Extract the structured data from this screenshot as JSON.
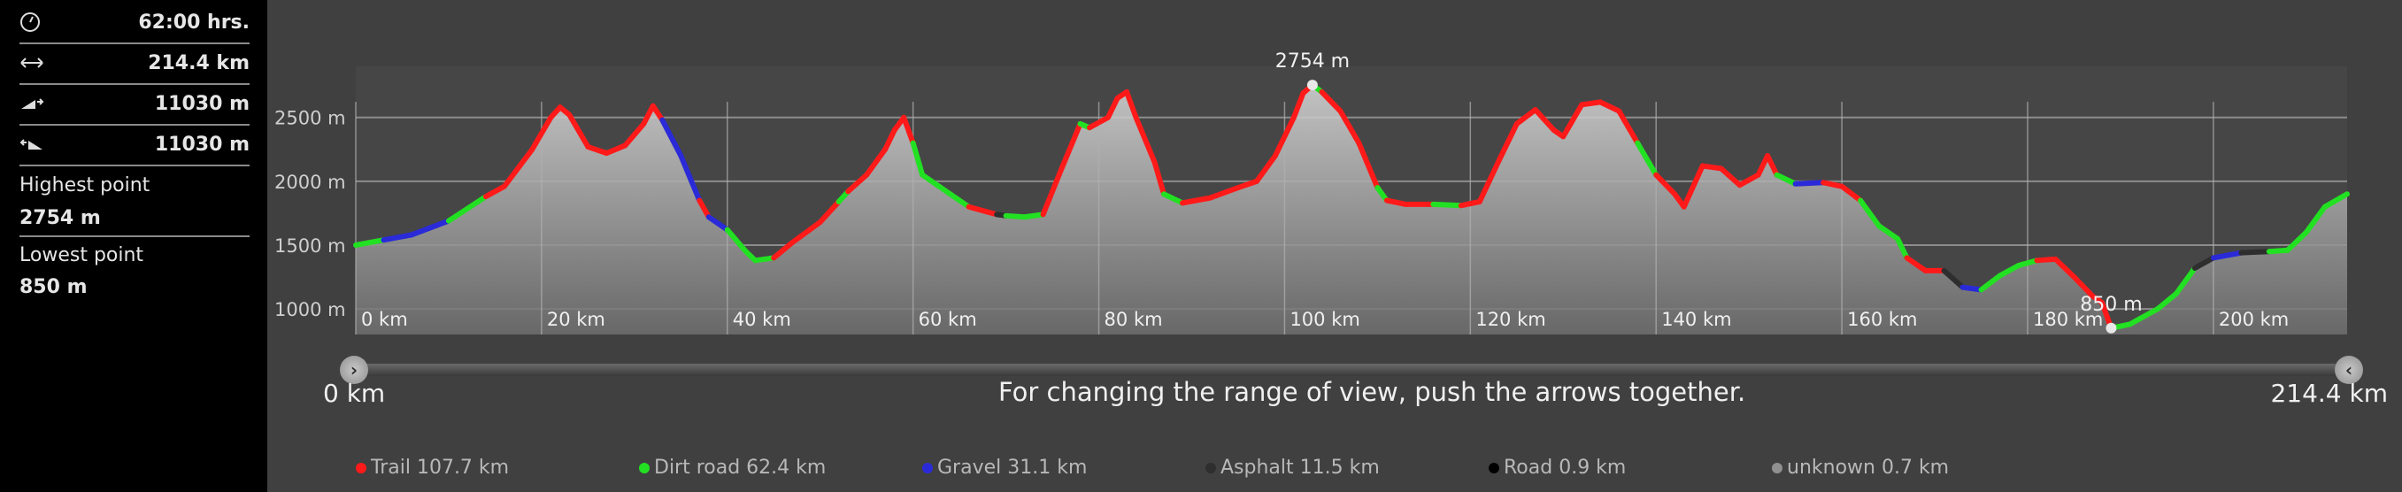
{
  "stats": {
    "duration": "62:00 hrs.",
    "distance": "214.4 km",
    "ascent": "11030 m",
    "descent": "11030 m",
    "highest_label": "Highest point",
    "highest_value": "2754 m",
    "lowest_label": "Lowest point",
    "lowest_value": "850 m"
  },
  "icons": {
    "duration": "clock-icon",
    "distance": "horizontal-arrows-icon",
    "ascent": "ascent-icon",
    "descent": "descent-icon"
  },
  "chart_data": {
    "type": "area",
    "xlim": [
      0,
      214.4
    ],
    "ylim": [
      800,
      2900
    ],
    "x_ticks": [
      0,
      20,
      40,
      60,
      80,
      100,
      120,
      140,
      160,
      180,
      200
    ],
    "x_tick_labels": [
      "0 km",
      "20 km",
      "40 km",
      "60 km",
      "80 km",
      "100 km",
      "120 km",
      "140 km",
      "160 km",
      "180 km",
      "200 km"
    ],
    "y_ticks": [
      1000,
      1500,
      2000,
      2500
    ],
    "y_tick_labels": [
      "1000 m",
      "1500 m",
      "2000 m",
      "2500 m"
    ],
    "grid": true,
    "surface_colors": {
      "trail": "#ff1a1a",
      "dirt": "#22e022",
      "gravel": "#2a2ad8",
      "asphalt": "#2e2e2e",
      "road": "#000000",
      "unknown": "#909090"
    },
    "profile": [
      {
        "x": 0,
        "y": 1500,
        "s": "asphalt"
      },
      {
        "x": 3,
        "y": 1540,
        "s": "dirt"
      },
      {
        "x": 6,
        "y": 1580,
        "s": "gravel"
      },
      {
        "x": 10,
        "y": 1690,
        "s": "gravel"
      },
      {
        "x": 14,
        "y": 1880,
        "s": "dirt"
      },
      {
        "x": 16,
        "y": 1960,
        "s": "trail"
      },
      {
        "x": 19,
        "y": 2250,
        "s": "trail"
      },
      {
        "x": 21,
        "y": 2500,
        "s": "trail"
      },
      {
        "x": 22,
        "y": 2580,
        "s": "trail"
      },
      {
        "x": 23,
        "y": 2520,
        "s": "trail"
      },
      {
        "x": 25,
        "y": 2270,
        "s": "trail"
      },
      {
        "x": 27,
        "y": 2220,
        "s": "trail"
      },
      {
        "x": 29,
        "y": 2280,
        "s": "trail"
      },
      {
        "x": 31,
        "y": 2450,
        "s": "trail"
      },
      {
        "x": 32,
        "y": 2590,
        "s": "trail"
      },
      {
        "x": 33,
        "y": 2480,
        "s": "trail"
      },
      {
        "x": 35,
        "y": 2200,
        "s": "gravel"
      },
      {
        "x": 37,
        "y": 1850,
        "s": "gravel"
      },
      {
        "x": 38,
        "y": 1720,
        "s": "trail"
      },
      {
        "x": 40,
        "y": 1620,
        "s": "gravel"
      },
      {
        "x": 42,
        "y": 1450,
        "s": "dirt"
      },
      {
        "x": 43,
        "y": 1380,
        "s": "dirt"
      },
      {
        "x": 45,
        "y": 1400,
        "s": "dirt"
      },
      {
        "x": 47,
        "y": 1520,
        "s": "trail"
      },
      {
        "x": 50,
        "y": 1680,
        "s": "trail"
      },
      {
        "x": 52,
        "y": 1840,
        "s": "trail"
      },
      {
        "x": 53,
        "y": 1920,
        "s": "dirt"
      },
      {
        "x": 55,
        "y": 2050,
        "s": "trail"
      },
      {
        "x": 57,
        "y": 2250,
        "s": "trail"
      },
      {
        "x": 58,
        "y": 2400,
        "s": "trail"
      },
      {
        "x": 59,
        "y": 2500,
        "s": "trail"
      },
      {
        "x": 60,
        "y": 2300,
        "s": "trail"
      },
      {
        "x": 61,
        "y": 2050,
        "s": "dirt"
      },
      {
        "x": 64,
        "y": 1900,
        "s": "dirt"
      },
      {
        "x": 66,
        "y": 1800,
        "s": "dirt"
      },
      {
        "x": 68,
        "y": 1760,
        "s": "trail"
      },
      {
        "x": 69,
        "y": 1740,
        "s": "trail"
      },
      {
        "x": 70,
        "y": 1730,
        "s": "asphalt"
      },
      {
        "x": 72,
        "y": 1720,
        "s": "dirt"
      },
      {
        "x": 74,
        "y": 1740,
        "s": "dirt"
      },
      {
        "x": 76,
        "y": 2100,
        "s": "trail"
      },
      {
        "x": 78,
        "y": 2450,
        "s": "trail"
      },
      {
        "x": 79,
        "y": 2420,
        "s": "dirt"
      },
      {
        "x": 81,
        "y": 2500,
        "s": "trail"
      },
      {
        "x": 82,
        "y": 2650,
        "s": "trail"
      },
      {
        "x": 83,
        "y": 2700,
        "s": "trail"
      },
      {
        "x": 84,
        "y": 2500,
        "s": "trail"
      },
      {
        "x": 86,
        "y": 2150,
        "s": "trail"
      },
      {
        "x": 87,
        "y": 1900,
        "s": "trail"
      },
      {
        "x": 89,
        "y": 1830,
        "s": "dirt"
      },
      {
        "x": 92,
        "y": 1870,
        "s": "trail"
      },
      {
        "x": 95,
        "y": 1950,
        "s": "trail"
      },
      {
        "x": 97,
        "y": 2000,
        "s": "trail"
      },
      {
        "x": 99,
        "y": 2200,
        "s": "trail"
      },
      {
        "x": 101,
        "y": 2500,
        "s": "trail"
      },
      {
        "x": 102,
        "y": 2690,
        "s": "trail"
      },
      {
        "x": 103,
        "y": 2754,
        "s": "trail"
      },
      {
        "x": 104,
        "y": 2700,
        "s": "dirt"
      },
      {
        "x": 106,
        "y": 2550,
        "s": "trail"
      },
      {
        "x": 108,
        "y": 2300,
        "s": "trail"
      },
      {
        "x": 110,
        "y": 1950,
        "s": "trail"
      },
      {
        "x": 111,
        "y": 1850,
        "s": "dirt"
      },
      {
        "x": 113,
        "y": 1820,
        "s": "trail"
      },
      {
        "x": 116,
        "y": 1820,
        "s": "trail"
      },
      {
        "x": 119,
        "y": 1810,
        "s": "dirt"
      },
      {
        "x": 121,
        "y": 1840,
        "s": "trail"
      },
      {
        "x": 123,
        "y": 2150,
        "s": "trail"
      },
      {
        "x": 125,
        "y": 2450,
        "s": "trail"
      },
      {
        "x": 127,
        "y": 2560,
        "s": "trail"
      },
      {
        "x": 129,
        "y": 2400,
        "s": "trail"
      },
      {
        "x": 130,
        "y": 2350,
        "s": "trail"
      },
      {
        "x": 132,
        "y": 2600,
        "s": "trail"
      },
      {
        "x": 134,
        "y": 2620,
        "s": "trail"
      },
      {
        "x": 136,
        "y": 2550,
        "s": "trail"
      },
      {
        "x": 138,
        "y": 2300,
        "s": "trail"
      },
      {
        "x": 140,
        "y": 2050,
        "s": "dirt"
      },
      {
        "x": 142,
        "y": 1900,
        "s": "trail"
      },
      {
        "x": 143,
        "y": 1800,
        "s": "trail"
      },
      {
        "x": 145,
        "y": 2120,
        "s": "trail"
      },
      {
        "x": 147,
        "y": 2100,
        "s": "trail"
      },
      {
        "x": 149,
        "y": 1970,
        "s": "trail"
      },
      {
        "x": 151,
        "y": 2050,
        "s": "trail"
      },
      {
        "x": 152,
        "y": 2200,
        "s": "trail"
      },
      {
        "x": 153,
        "y": 2050,
        "s": "trail"
      },
      {
        "x": 155,
        "y": 1980,
        "s": "dirt"
      },
      {
        "x": 158,
        "y": 1990,
        "s": "gravel"
      },
      {
        "x": 160,
        "y": 1960,
        "s": "trail"
      },
      {
        "x": 162,
        "y": 1850,
        "s": "trail"
      },
      {
        "x": 164,
        "y": 1650,
        "s": "dirt"
      },
      {
        "x": 166,
        "y": 1550,
        "s": "dirt"
      },
      {
        "x": 167,
        "y": 1400,
        "s": "dirt"
      },
      {
        "x": 169,
        "y": 1300,
        "s": "trail"
      },
      {
        "x": 171,
        "y": 1300,
        "s": "trail"
      },
      {
        "x": 173,
        "y": 1170,
        "s": "asphalt"
      },
      {
        "x": 175,
        "y": 1150,
        "s": "gravel"
      },
      {
        "x": 177,
        "y": 1260,
        "s": "dirt"
      },
      {
        "x": 179,
        "y": 1340,
        "s": "dirt"
      },
      {
        "x": 181,
        "y": 1380,
        "s": "dirt"
      },
      {
        "x": 183,
        "y": 1390,
        "s": "trail"
      },
      {
        "x": 185,
        "y": 1250,
        "s": "trail"
      },
      {
        "x": 187,
        "y": 1100,
        "s": "trail"
      },
      {
        "x": 188,
        "y": 1050,
        "s": "trail"
      },
      {
        "x": 189,
        "y": 850,
        "s": "trail"
      },
      {
        "x": 191,
        "y": 880,
        "s": "dirt"
      },
      {
        "x": 194,
        "y": 1000,
        "s": "dirt"
      },
      {
        "x": 196,
        "y": 1120,
        "s": "dirt"
      },
      {
        "x": 198,
        "y": 1320,
        "s": "dirt"
      },
      {
        "x": 200,
        "y": 1400,
        "s": "asphalt"
      },
      {
        "x": 203,
        "y": 1440,
        "s": "gravel"
      },
      {
        "x": 206,
        "y": 1450,
        "s": "asphalt"
      },
      {
        "x": 208,
        "y": 1460,
        "s": "dirt"
      },
      {
        "x": 210,
        "y": 1600,
        "s": "dirt"
      },
      {
        "x": 212,
        "y": 1800,
        "s": "dirt"
      },
      {
        "x": 214.4,
        "y": 1900,
        "s": "dirt"
      }
    ],
    "annotations": [
      {
        "x": 103,
        "y": 2754,
        "label": "2754 m"
      },
      {
        "x": 189,
        "y": 850,
        "label": "850 m"
      }
    ]
  },
  "slider": {
    "min_label": "0 km",
    "max_label": "214.4 km",
    "hint": "For changing the range of view, push the arrows together.",
    "left_arrow": "›",
    "right_arrow": "‹"
  },
  "legend": [
    {
      "label": "Trail 107.7 km",
      "color": "#ff1a1a"
    },
    {
      "label": "Dirt road 62.4 km",
      "color": "#22e022"
    },
    {
      "label": "Gravel 31.1 km",
      "color": "#2a2ad8"
    },
    {
      "label": "Asphalt 11.5 km",
      "color": "#2e2e2e"
    },
    {
      "label": "Road 0.9 km",
      "color": "#000000"
    },
    {
      "label": "unknown 0.7 km",
      "color": "#909090"
    }
  ]
}
